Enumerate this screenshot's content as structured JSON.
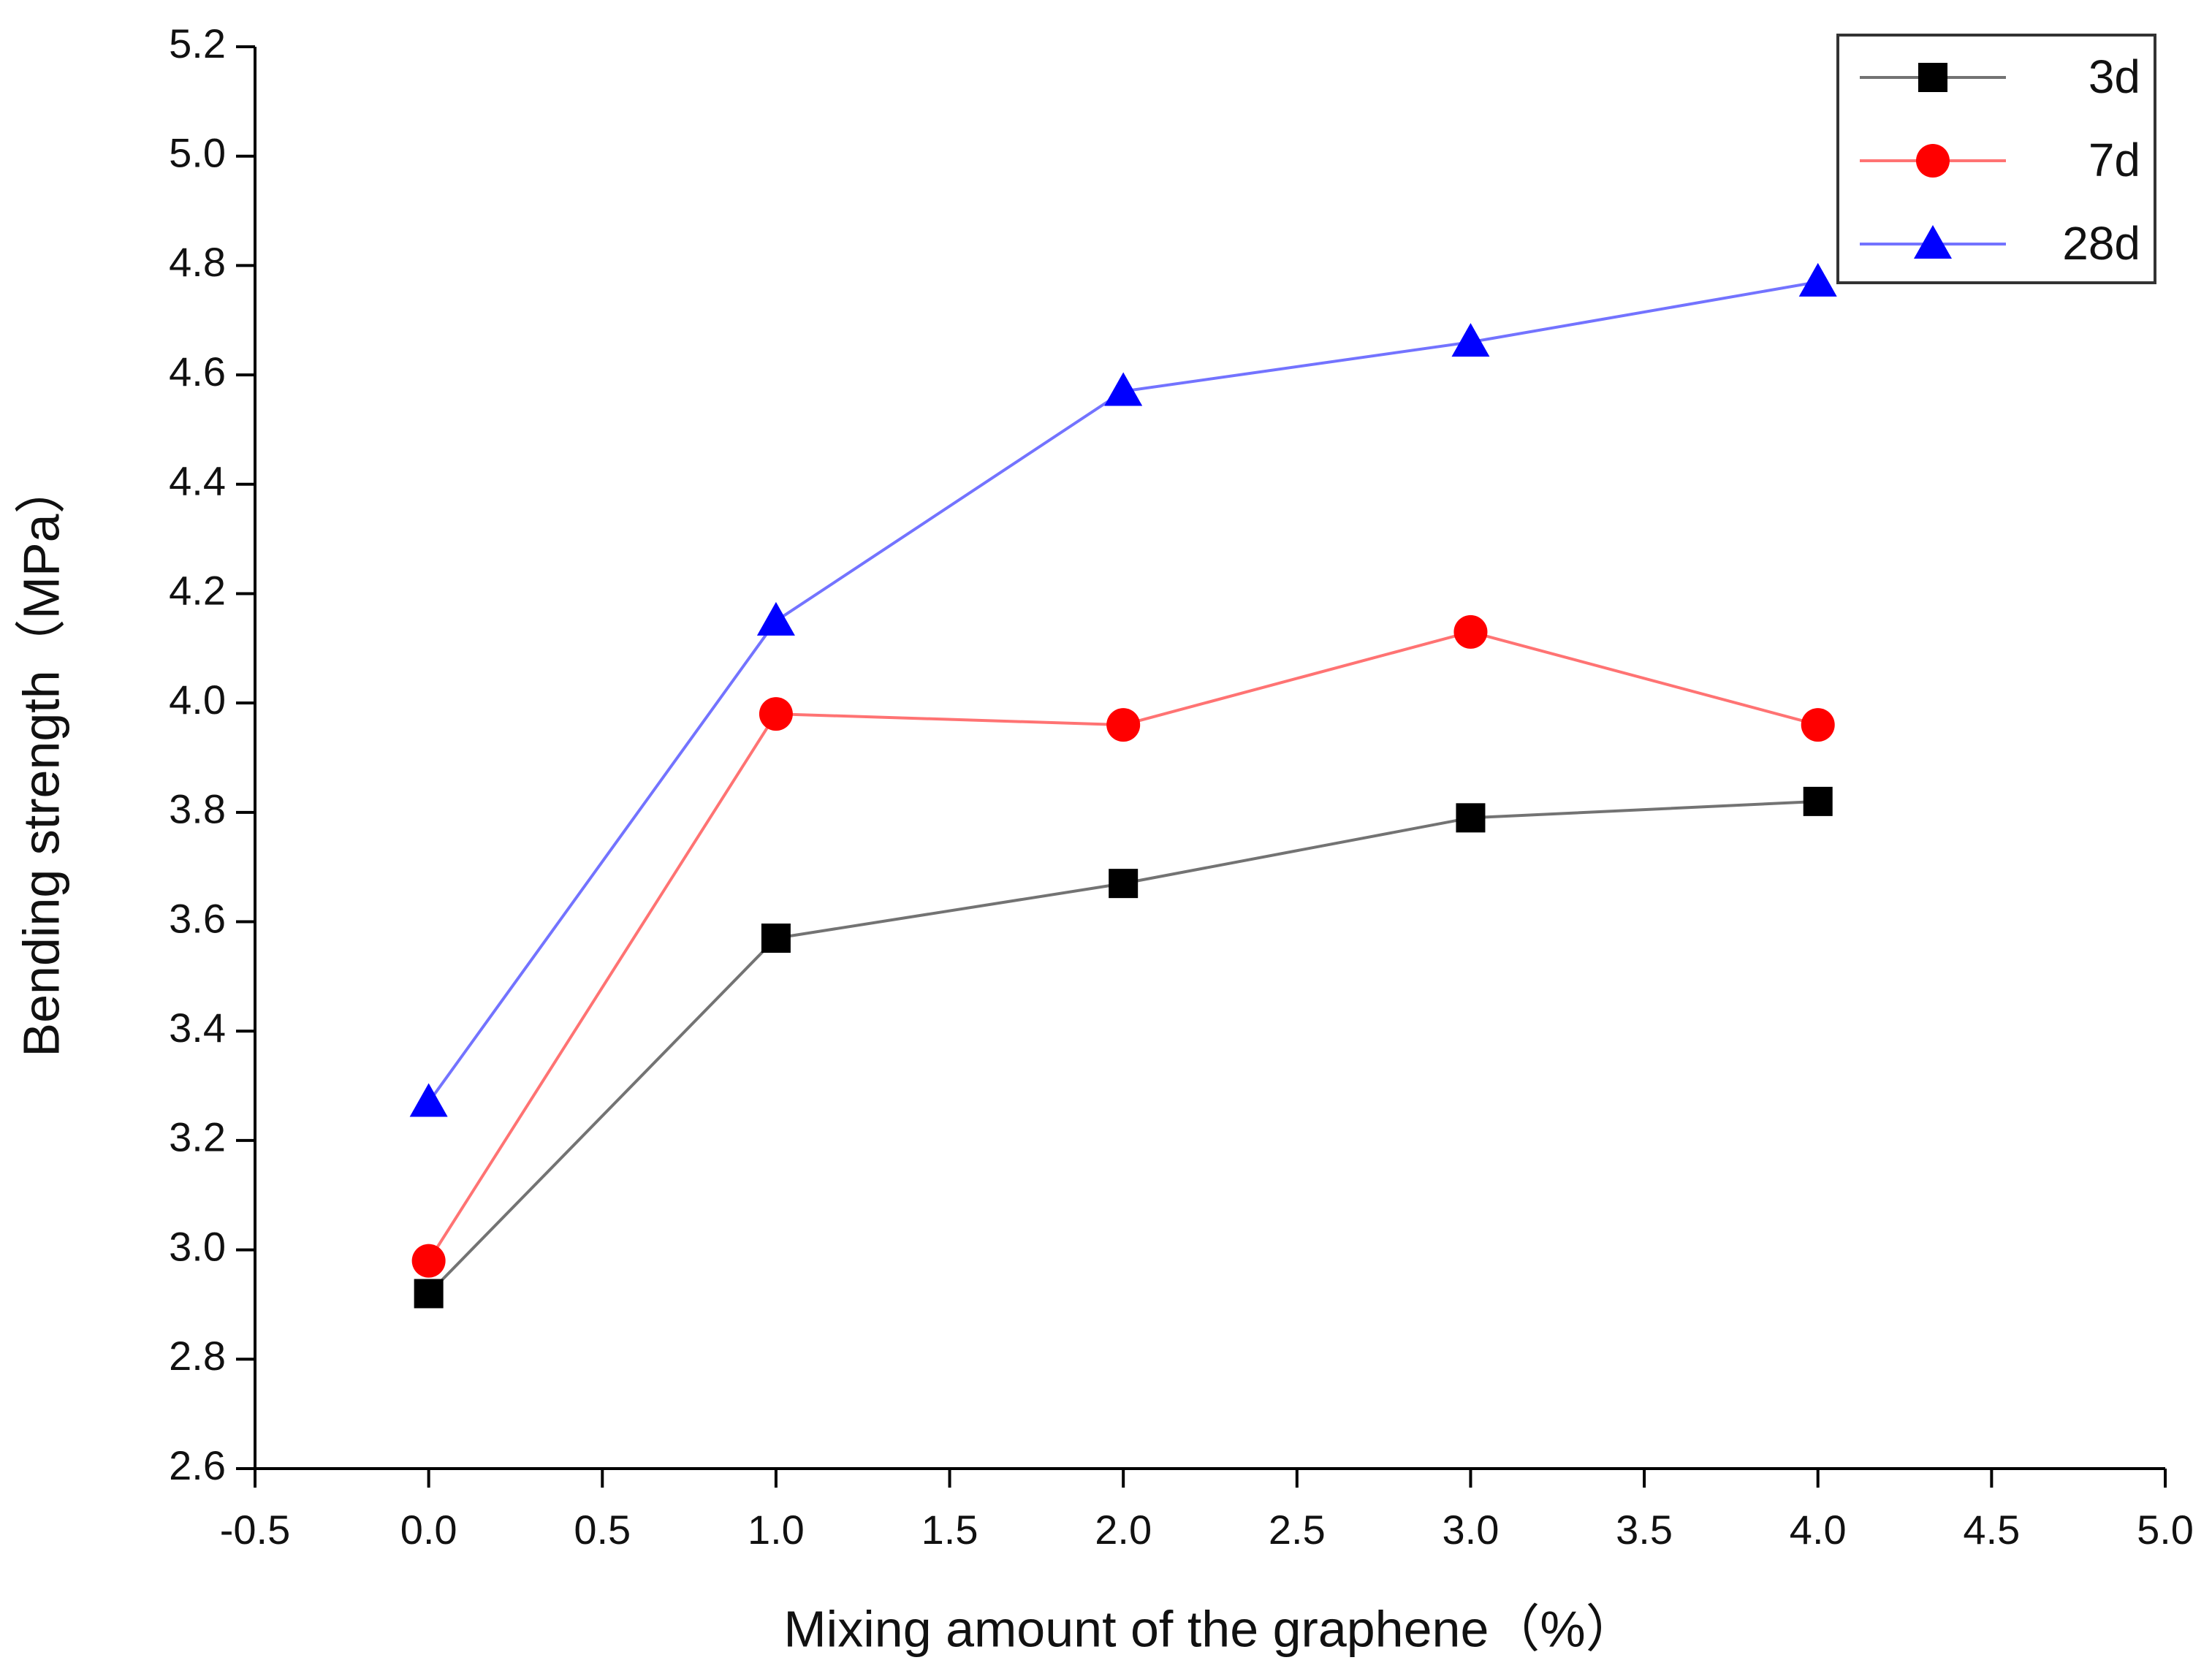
{
  "chart_data": {
    "type": "line",
    "x_label": "Mixing amount of the graphene（%）",
    "y_label": "Bending strength（MPa）",
    "x": [
      0,
      1,
      2,
      3,
      4
    ],
    "series": [
      {
        "name": "3d",
        "color": "#000000",
        "marker": "square",
        "values": [
          2.92,
          3.57,
          3.67,
          3.79,
          3.82
        ]
      },
      {
        "name": "7d",
        "color": "#ff0000",
        "marker": "circle",
        "values": [
          2.98,
          3.98,
          3.96,
          4.13,
          3.96
        ]
      },
      {
        "name": "28d",
        "color": "#0000ff",
        "marker": "triangle",
        "values": [
          3.27,
          4.15,
          4.57,
          4.66,
          4.77
        ]
      }
    ],
    "xlim": [
      -0.5,
      5.0
    ],
    "xticks": [
      -0.5,
      {
        "value": 0,
        "label": "0.0"
      },
      0.5,
      {
        "value": 1,
        "label": "1.0"
      },
      1.5,
      {
        "value": 2,
        "label": "2.0"
      },
      2.5,
      {
        "value": 3,
        "label": "3.0"
      },
      3.5,
      {
        "value": 4,
        "label": "4.0"
      },
      4.5,
      {
        "value": 5,
        "label": "5.0"
      }
    ],
    "ylim": [
      2.6,
      5.2
    ],
    "yticks": [
      2.6,
      2.8,
      {
        "value": 3,
        "label": "3.0"
      },
      3.2,
      3.4,
      3.6,
      3.8,
      {
        "value": 4,
        "label": "4.0"
      },
      4.2,
      4.4,
      4.6,
      4.8,
      {
        "value": 5,
        "label": "5.0"
      },
      5.2
    ],
    "grid": false,
    "legend": "top-right"
  }
}
